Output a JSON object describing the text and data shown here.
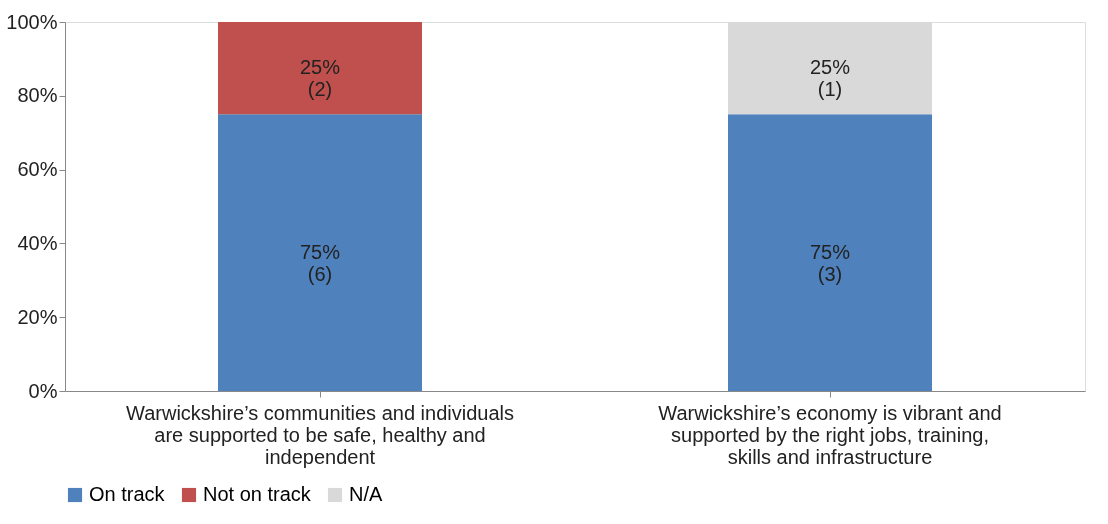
{
  "chart_data": {
    "type": "bar",
    "stacked": true,
    "categories": [
      "Warwickshire’s communities and individuals are supported to be safe, healthy and independent",
      "Warwickshire’s economy is vibrant and supported by the right jobs, training, skills and infrastructure"
    ],
    "series": [
      {
        "name": "On track",
        "color": "#4f81bd",
        "values": [
          75,
          75
        ],
        "value_labels": [
          "75%\n(6)",
          "75%\n(3)"
        ]
      },
      {
        "name": "Not on track",
        "color": "#c0504d",
        "values": [
          25,
          null
        ],
        "value_labels": [
          "25%\n(2)",
          null
        ]
      },
      {
        "name": "N/A",
        "color": "#d9d9d9",
        "values": [
          null,
          25
        ],
        "value_labels": [
          null,
          "25%\n(1)"
        ]
      }
    ],
    "ylim": [
      0,
      100
    ],
    "yticks": [
      {
        "value": 0,
        "label": "0%"
      },
      {
        "value": 20,
        "label": "20%"
      },
      {
        "value": 40,
        "label": "40%"
      },
      {
        "value": 60,
        "label": "60%"
      },
      {
        "value": 80,
        "label": "80%"
      },
      {
        "value": 100,
        "label": "100%"
      }
    ],
    "grid": false,
    "legend": "bottom"
  }
}
